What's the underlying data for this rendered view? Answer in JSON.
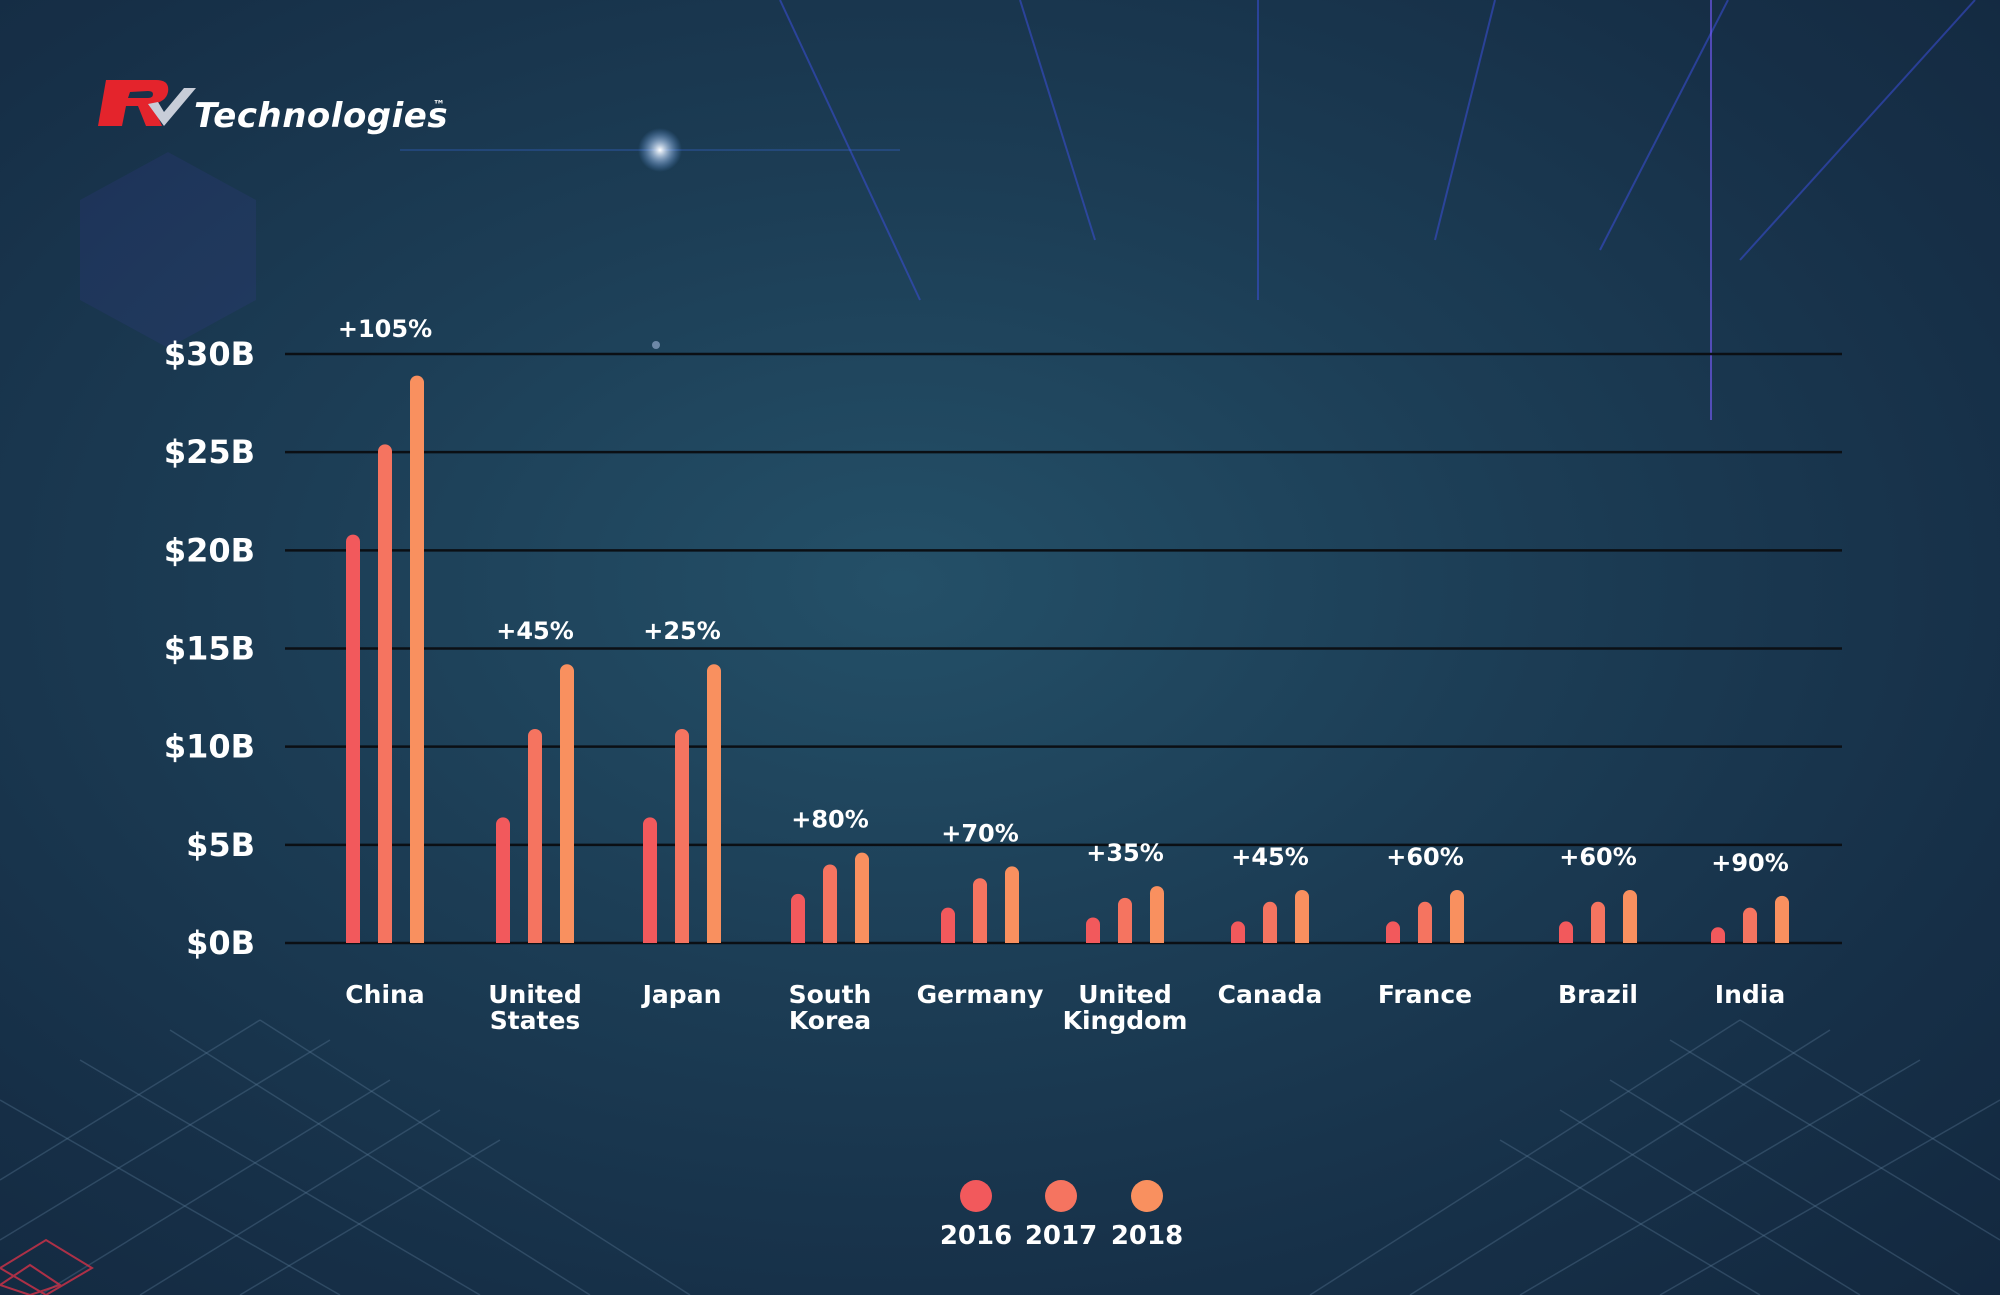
{
  "brand": {
    "name": "Technologies",
    "trademark": "™",
    "logo_mark_text": "RV",
    "logo_color": "#e4242c"
  },
  "chart_data": {
    "type": "bar",
    "title": "",
    "xlabel": "",
    "ylabel": "",
    "ylim": [
      0,
      30
    ],
    "y_ticks": [
      {
        "value": 0,
        "label": "$0B"
      },
      {
        "value": 5,
        "label": "$5B"
      },
      {
        "value": 10,
        "label": "$10B"
      },
      {
        "value": 15,
        "label": "$15B"
      },
      {
        "value": 20,
        "label": "$20B"
      },
      {
        "value": 25,
        "label": "$25B"
      },
      {
        "value": 30,
        "label": "$30B"
      }
    ],
    "grid": true,
    "legend_position": "bottom-center",
    "categories": [
      [
        "China"
      ],
      [
        "United",
        "States"
      ],
      [
        "Japan"
      ],
      [
        "South",
        "Korea"
      ],
      [
        "Germany"
      ],
      [
        "United",
        "Kingdom"
      ],
      [
        "Canada"
      ],
      [
        "France"
      ],
      [
        "Brazil"
      ],
      [
        "India"
      ]
    ],
    "series": [
      {
        "name": "2016",
        "color": "#f2595c",
        "values": [
          20.8,
          6.4,
          6.4,
          2.5,
          1.8,
          1.3,
          1.1,
          1.1,
          1.1,
          0.8
        ]
      },
      {
        "name": "2017",
        "color": "#f57460",
        "values": [
          25.4,
          10.9,
          10.9,
          4.0,
          3.3,
          2.3,
          2.1,
          2.1,
          2.1,
          1.8
        ]
      },
      {
        "name": "2018",
        "color": "#f9905f",
        "values": [
          28.9,
          14.2,
          14.2,
          4.6,
          3.9,
          2.9,
          2.7,
          2.7,
          2.7,
          2.4
        ]
      }
    ],
    "annotations": [
      "+105%",
      "+45%",
      "+25%",
      "+80%",
      "+70%",
      "+35%",
      "+45%",
      "+60%",
      "+60%",
      "+90%"
    ]
  }
}
